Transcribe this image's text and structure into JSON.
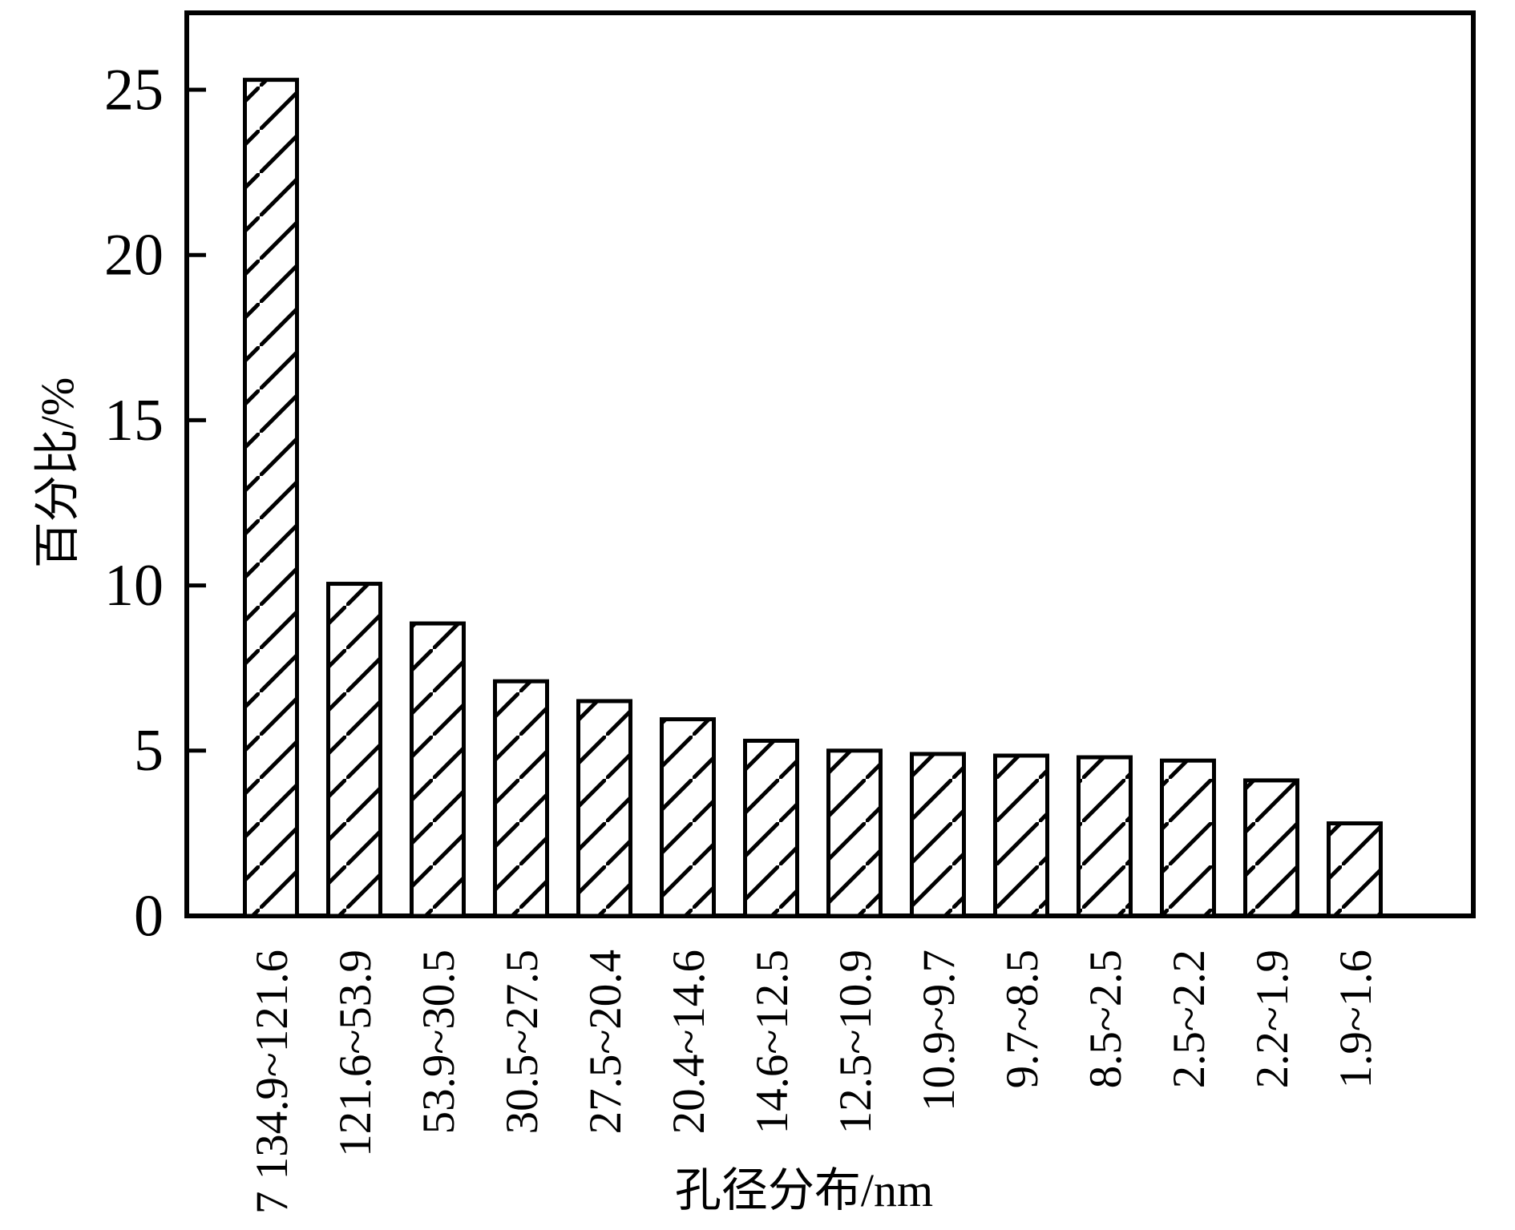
{
  "figure": {
    "background": "#ffffff",
    "foreground": "#000000"
  },
  "chart_data": {
    "type": "bar",
    "title": "",
    "xlabel": "孔径分布/nm",
    "ylabel": "百分比/%",
    "categories": [
      "7 134.9~121.6",
      "121.6~53.9",
      "53.9~30.5",
      "30.5~27.5",
      "27.5~20.4",
      "20.4~14.6",
      "14.6~12.5",
      "12.5~10.9",
      "10.9~9.7",
      "9.7~8.5",
      "8.5~2.5",
      "2.5~2.2",
      "2.2~1.9",
      "1.9~1.6"
    ],
    "values": [
      25.3,
      10.05,
      8.85,
      7.1,
      6.5,
      5.95,
      5.3,
      5.0,
      4.9,
      4.85,
      4.8,
      4.7,
      4.1,
      2.8
    ],
    "yticks": [
      0,
      5,
      10,
      15,
      20,
      25
    ],
    "ylim": [
      0,
      27.3
    ],
    "grid": "off",
    "legend": "none",
    "bar_fill": "#ffffff",
    "bar_hatch": "forward-diagonal",
    "line_color": "#000000"
  }
}
